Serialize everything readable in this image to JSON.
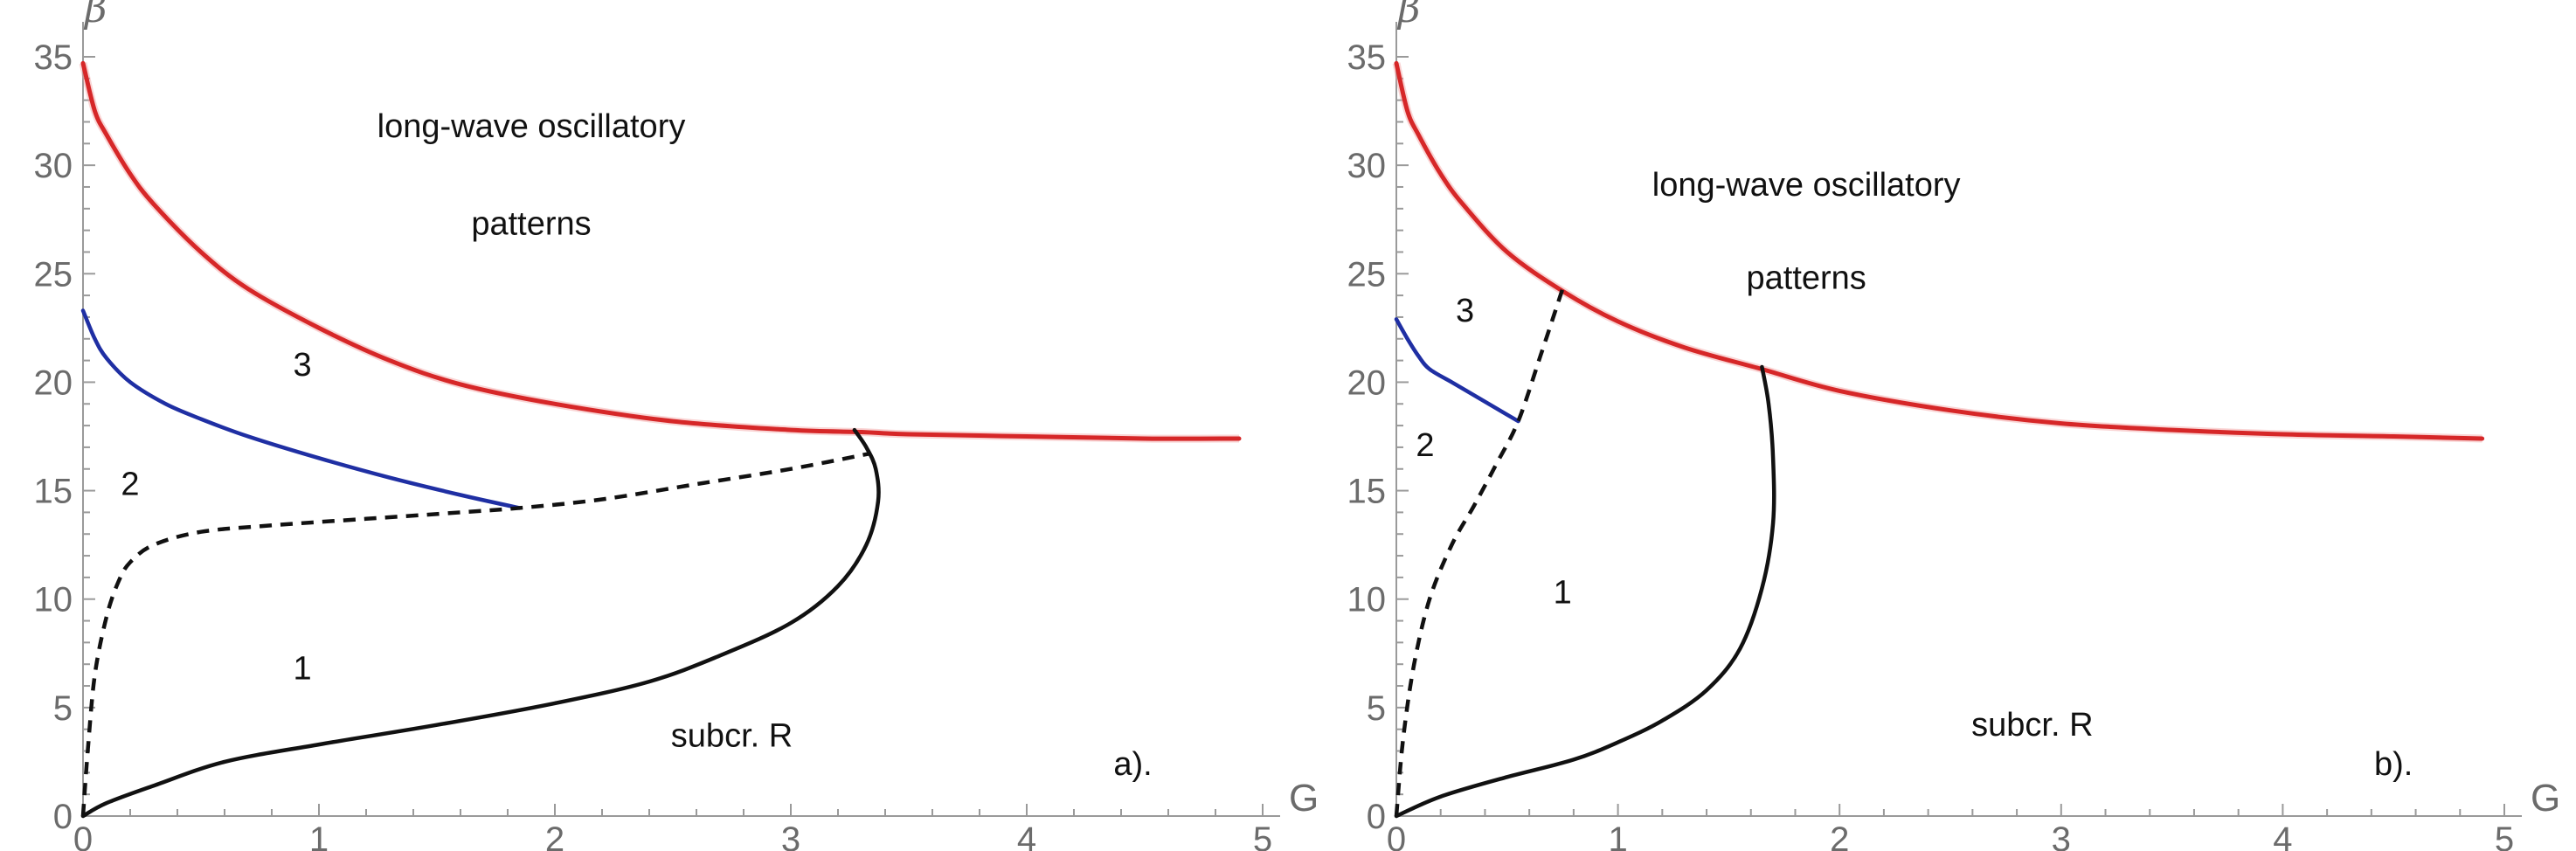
{
  "chart_data": [
    {
      "type": "line",
      "panel_label": "a).",
      "xlabel": "G",
      "ylabel": "β",
      "xlim": [
        0,
        5
      ],
      "ylim": [
        0,
        35
      ],
      "xticks": [
        0,
        1,
        2,
        3,
        4,
        5
      ],
      "yticks": [
        0,
        5,
        10,
        15,
        20,
        25,
        30,
        35
      ],
      "grid": false,
      "annotations": [
        {
          "text": "long-wave oscillatory",
          "x": 1.9,
          "y": 31.3
        },
        {
          "text": "patterns",
          "x": 1.9,
          "y": 26.8
        },
        {
          "text": "3",
          "x": 0.93,
          "y": 20.3
        },
        {
          "text": "2",
          "x": 0.2,
          "y": 14.8
        },
        {
          "text": "1",
          "x": 0.93,
          "y": 6.3
        },
        {
          "text": "subcr. R",
          "x": 2.75,
          "y": 3.2
        },
        {
          "text": "a).",
          "x": 4.45,
          "y": 1.9
        }
      ],
      "series": [
        {
          "style": "solid",
          "color": "#d62728",
          "x": [
            0.0,
            0.05,
            0.1,
            0.2,
            0.3,
            0.5,
            0.7,
            1.0,
            1.3,
            1.6,
            2.0,
            2.5,
            3.0,
            3.3,
            3.5,
            4.0,
            4.5,
            4.9
          ],
          "y": [
            34.7,
            32.5,
            31.4,
            29.6,
            28.2,
            26.0,
            24.3,
            22.5,
            21.0,
            19.9,
            19.0,
            18.2,
            17.8,
            17.7,
            17.6,
            17.5,
            17.4,
            17.4
          ]
        },
        {
          "style": "solid",
          "color": "#1f2fa3",
          "x": [
            0.0,
            0.05,
            0.1,
            0.2,
            0.35,
            0.5,
            0.7,
            1.0,
            1.3,
            1.6,
            1.85
          ],
          "y": [
            23.3,
            22.0,
            21.1,
            20.0,
            19.0,
            18.3,
            17.5,
            16.5,
            15.6,
            14.8,
            14.2
          ]
        },
        {
          "style": "dashed",
          "color": "#111111",
          "x": [
            0.0,
            0.02,
            0.05,
            0.1,
            0.15,
            0.2,
            0.3,
            0.5,
            0.8,
            1.2,
            1.6,
            1.85,
            2.2,
            2.6,
            3.0,
            3.33
          ],
          "y": [
            0.0,
            3.0,
            6.5,
            9.2,
            10.8,
            11.7,
            12.5,
            13.1,
            13.4,
            13.7,
            14.0,
            14.2,
            14.6,
            15.3,
            16.0,
            16.7
          ]
        },
        {
          "style": "solid",
          "color": "#111111",
          "x": [
            0.0,
            0.1,
            0.3,
            0.6,
            1.0,
            1.5,
            2.0,
            2.4,
            2.7,
            3.0,
            3.2,
            3.32,
            3.37,
            3.36,
            3.32,
            3.27
          ],
          "y": [
            0.0,
            0.6,
            1.4,
            2.5,
            3.3,
            4.2,
            5.2,
            6.2,
            7.4,
            8.9,
            10.6,
            12.5,
            14.5,
            16.0,
            17.0,
            17.8
          ]
        }
      ]
    },
    {
      "type": "line",
      "panel_label": "b).",
      "xlabel": "G",
      "ylabel": "β",
      "xlim": [
        0,
        5
      ],
      "ylim": [
        0,
        35
      ],
      "xticks": [
        0,
        1,
        2,
        3,
        4,
        5
      ],
      "yticks": [
        0,
        5,
        10,
        15,
        20,
        25,
        30,
        35
      ],
      "grid": false,
      "annotations": [
        {
          "text": "long-wave oscillatory",
          "x": 1.85,
          "y": 28.6
        },
        {
          "text": "patterns",
          "x": 1.85,
          "y": 24.3
        },
        {
          "text": "3",
          "x": 0.31,
          "y": 22.8
        },
        {
          "text": "2",
          "x": 0.13,
          "y": 16.6
        },
        {
          "text": "1",
          "x": 0.75,
          "y": 9.8
        },
        {
          "text": "subcr. R",
          "x": 2.87,
          "y": 3.7
        },
        {
          "text": "b).",
          "x": 4.5,
          "y": 1.9
        }
      ],
      "series": [
        {
          "style": "solid",
          "color": "#d62728",
          "x": [
            0.0,
            0.05,
            0.1,
            0.2,
            0.3,
            0.5,
            0.75,
            1.0,
            1.3,
            1.65,
            2.0,
            2.5,
            3.0,
            3.5,
            4.0,
            4.5,
            4.9
          ],
          "y": [
            34.7,
            32.5,
            31.4,
            29.6,
            28.2,
            26.0,
            24.2,
            22.8,
            21.6,
            20.6,
            19.6,
            18.7,
            18.1,
            17.8,
            17.6,
            17.5,
            17.4
          ]
        },
        {
          "style": "solid",
          "color": "#1f2fa3",
          "x": [
            0.0,
            0.05,
            0.1,
            0.15,
            0.25,
            0.35,
            0.45,
            0.55
          ],
          "y": [
            22.9,
            22.0,
            21.2,
            20.6,
            20.0,
            19.4,
            18.8,
            18.2
          ]
        },
        {
          "style": "dashed",
          "color": "#111111",
          "x": [
            0.0,
            0.03,
            0.08,
            0.15,
            0.25,
            0.35,
            0.45,
            0.55,
            0.65,
            0.75
          ],
          "y": [
            0.0,
            3.5,
            7.0,
            10.0,
            12.5,
            14.3,
            16.2,
            18.2,
            21.2,
            24.3
          ]
        },
        {
          "style": "solid",
          "color": "#111111",
          "x": [
            0.0,
            0.2,
            0.5,
            0.8,
            1.0,
            1.2,
            1.4,
            1.55,
            1.65,
            1.7,
            1.7,
            1.68,
            1.65
          ],
          "y": [
            0.0,
            0.9,
            1.8,
            2.6,
            3.4,
            4.4,
            5.8,
            7.7,
            10.5,
            13.5,
            16.5,
            19.0,
            20.7
          ]
        }
      ]
    }
  ]
}
